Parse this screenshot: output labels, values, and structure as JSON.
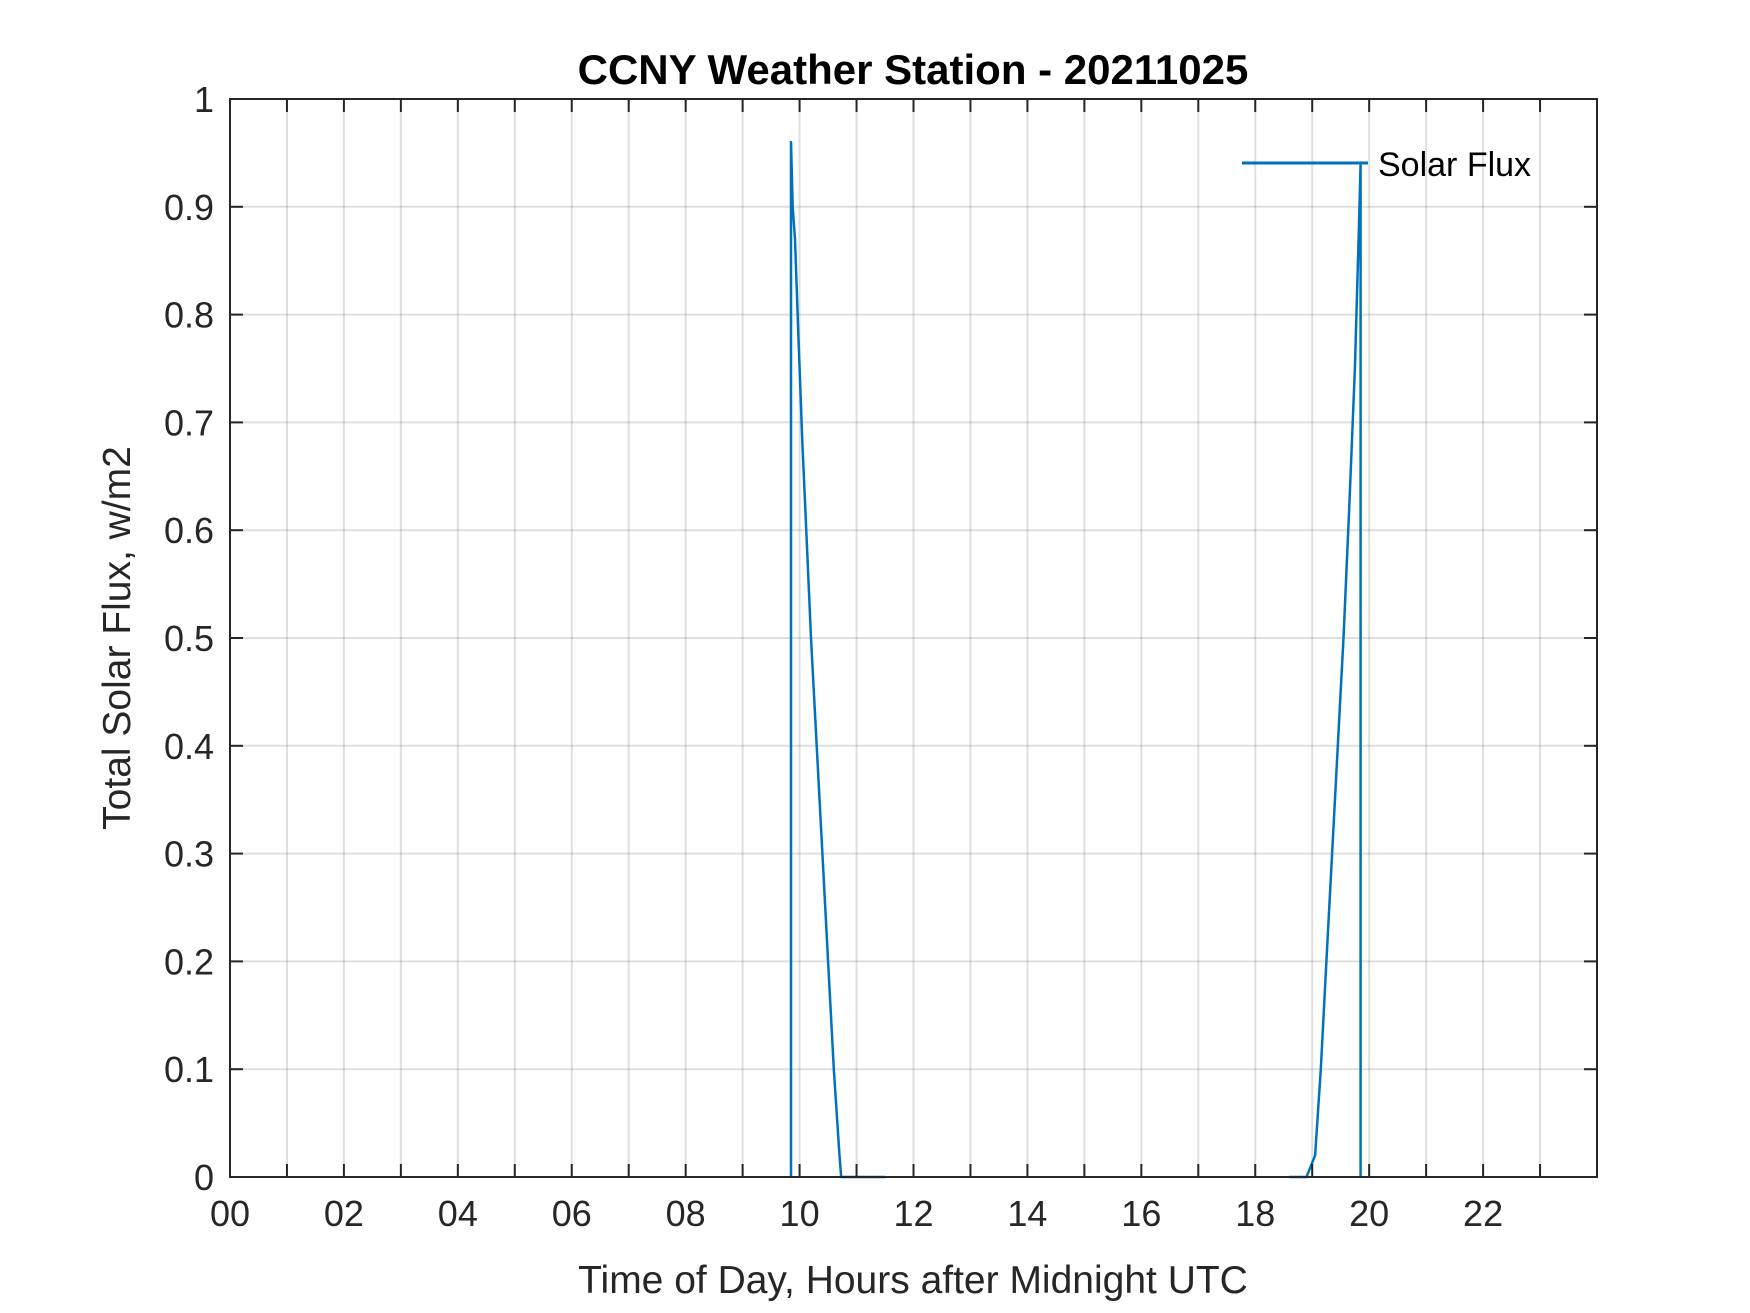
{
  "chart_data": {
    "type": "line",
    "title": "CCNY Weather Station - 20211025",
    "xlabel": "Time of Day, Hours after Midnight UTC",
    "ylabel": "Total Solar Flux, w/m2",
    "xlim": [
      0,
      24
    ],
    "ylim": [
      0,
      1
    ],
    "grid": true,
    "legend_position": "top-right",
    "x_ticks": [
      0,
      2,
      4,
      6,
      8,
      10,
      12,
      14,
      16,
      18,
      20,
      22
    ],
    "x_tick_labels": [
      "00",
      "02",
      "04",
      "06",
      "08",
      "10",
      "12",
      "14",
      "16",
      "18",
      "20",
      "22"
    ],
    "y_ticks": [
      0,
      0.1,
      0.2,
      0.3,
      0.4,
      0.5,
      0.6,
      0.7,
      0.8,
      0.9,
      1
    ],
    "y_tick_labels": [
      "0",
      "0.1",
      "0.2",
      "0.3",
      "0.4",
      "0.5",
      "0.6",
      "0.7",
      "0.8",
      "0.9",
      "1"
    ],
    "series": [
      {
        "name": "Solar Flux",
        "color": "#0072BD",
        "segments": [
          {
            "x": [
              9.85,
              9.85,
              9.88,
              9.92,
              9.98,
              10.05,
              10.1,
              10.2,
              10.3,
              10.4,
              10.5,
              10.6,
              10.7,
              10.73,
              10.8,
              11.0,
              11.5
            ],
            "y": [
              0,
              0.96,
              0.9,
              0.87,
              0.78,
              0.68,
              0.62,
              0.5,
              0.4,
              0.3,
              0.2,
              0.1,
              0.02,
              0,
              0,
              0,
              0
            ]
          },
          {
            "x": [
              18.6,
              18.9,
              19.05,
              19.15,
              19.25,
              19.35,
              19.45,
              19.55,
              19.65,
              19.75,
              19.82,
              19.85,
              19.85
            ],
            "y": [
              0,
              0,
              0.02,
              0.1,
              0.2,
              0.3,
              0.4,
              0.5,
              0.62,
              0.75,
              0.88,
              0.94,
              0
            ]
          }
        ]
      }
    ]
  }
}
